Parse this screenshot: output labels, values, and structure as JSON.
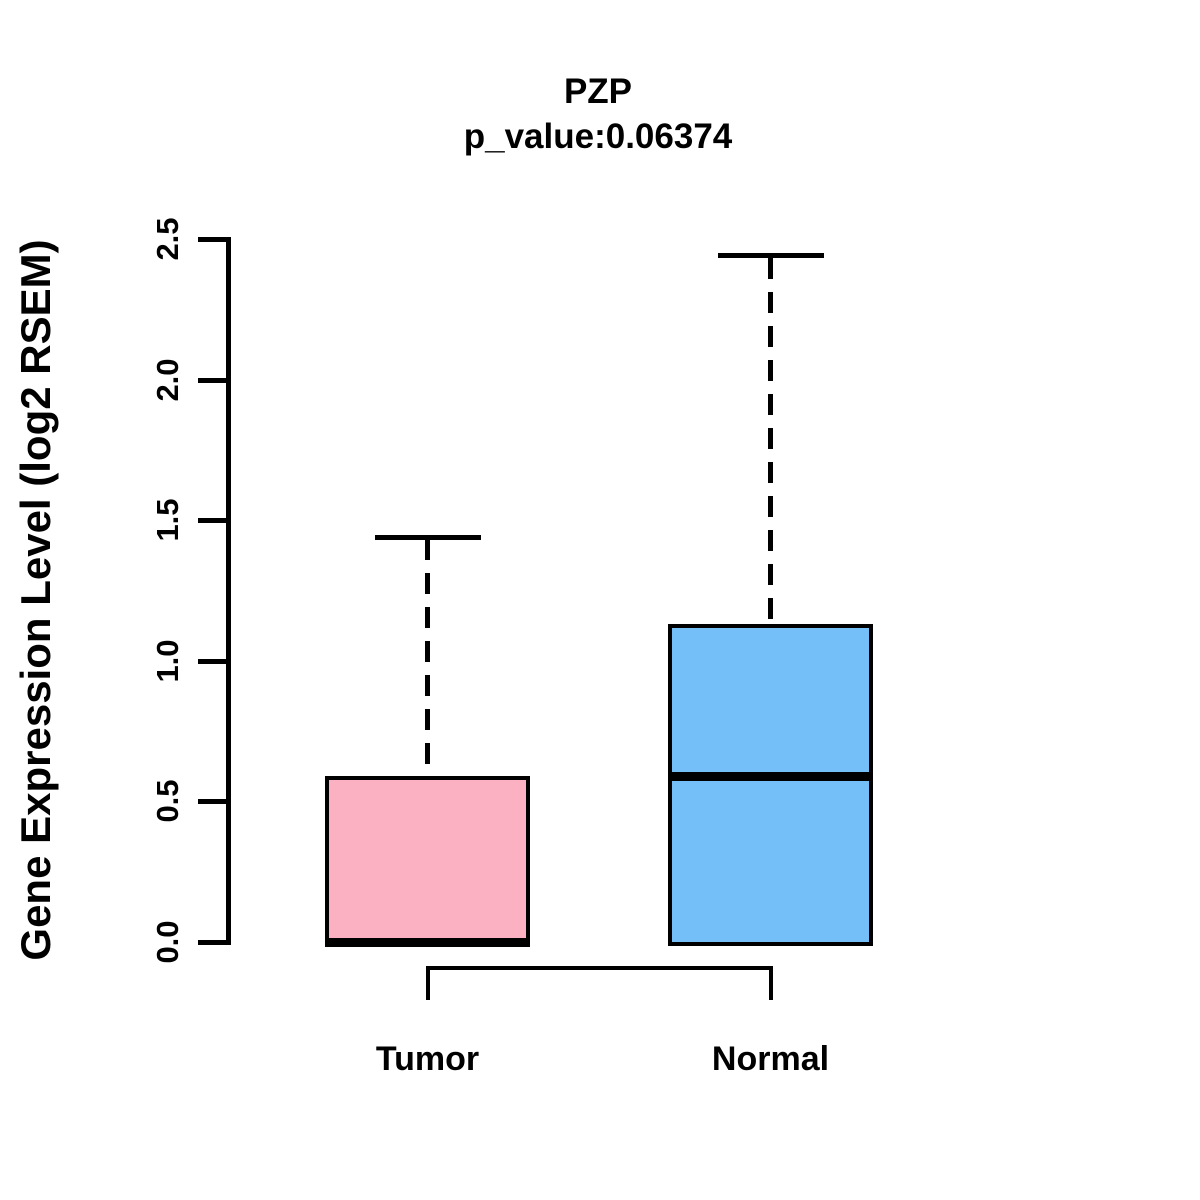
{
  "figure": {
    "title": "PZP",
    "subtitle": "p_value:0.06374"
  },
  "chart_data": {
    "type": "boxplot",
    "title": "PZP",
    "subtitle": "p_value:0.06374",
    "xlabel": "",
    "ylabel": "Gene Expression Level (log2 RSEM)",
    "ylim": [
      0.0,
      2.5
    ],
    "y_ticks": [
      0.0,
      0.5,
      1.0,
      1.5,
      2.0,
      2.5
    ],
    "grid": false,
    "legend": "none",
    "line_color": "#000000",
    "background_color": "#FFFFFF",
    "groups": [
      {
        "label": "Tumor",
        "fill_color": "#FCB1C3",
        "whisker_low": 0.0,
        "q1": 0.0,
        "median": 0.0,
        "q3": 0.59,
        "whisker_high": 1.44
      },
      {
        "label": "Normal",
        "fill_color": "#74BFF8",
        "whisker_low": 0.0,
        "q1": 0.0,
        "median": 0.59,
        "q3": 1.13,
        "whisker_high": 2.44
      }
    ],
    "comparison_bracket": {
      "between": [
        "Tumor",
        "Normal"
      ],
      "position": "below-axis"
    }
  }
}
